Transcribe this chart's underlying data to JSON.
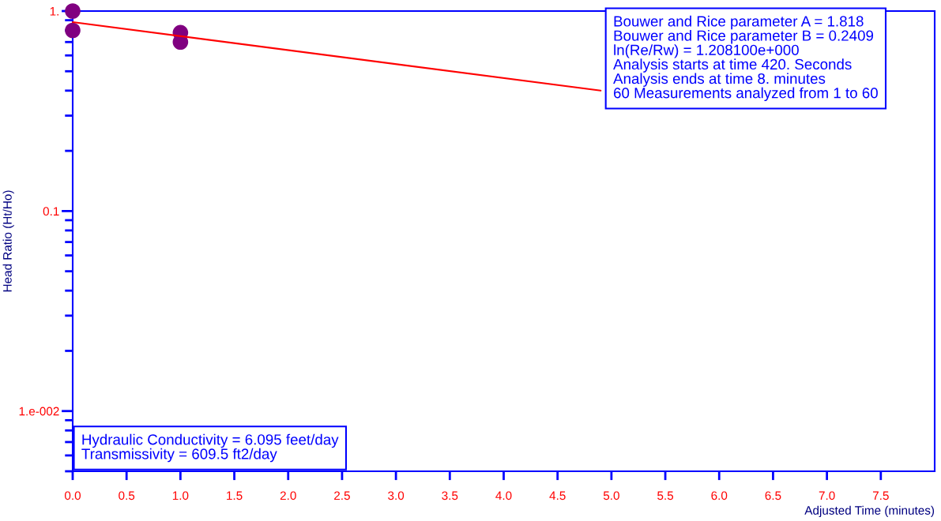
{
  "chart_data": {
    "type": "scatter",
    "xlabel": "Adjusted Time (minutes)",
    "ylabel": "Head Ratio (Ht/Ho)",
    "log": "y",
    "xlim": [
      0,
      8
    ],
    "ylim": [
      0.005,
      1
    ],
    "xticks": [
      {
        "value": 0,
        "label": "0.0"
      },
      {
        "value": 0.5,
        "label": "0.5"
      },
      {
        "value": 1,
        "label": "1.0"
      },
      {
        "value": 1.5,
        "label": "1.5"
      },
      {
        "value": 2,
        "label": "2.0"
      },
      {
        "value": 2.5,
        "label": "2.5"
      },
      {
        "value": 3,
        "label": "3.0"
      },
      {
        "value": 3.5,
        "label": "3.5"
      },
      {
        "value": 4,
        "label": "4.0"
      },
      {
        "value": 4.5,
        "label": "4.5"
      },
      {
        "value": 5,
        "label": "5.0"
      },
      {
        "value": 5.5,
        "label": "5.5"
      },
      {
        "value": 6,
        "label": "6.0"
      },
      {
        "value": 6.5,
        "label": "6.5"
      },
      {
        "value": 7,
        "label": "7.0"
      },
      {
        "value": 7.5,
        "label": "7.5"
      }
    ],
    "yticks": [
      {
        "value": 1,
        "label": "1."
      },
      {
        "value": 0.9,
        "label": null
      },
      {
        "value": 0.8,
        "label": null
      },
      {
        "value": 0.7,
        "label": null
      },
      {
        "value": 0.6,
        "label": null
      },
      {
        "value": 0.5,
        "label": null
      },
      {
        "value": 0.4,
        "label": null
      },
      {
        "value": 0.3,
        "label": null
      },
      {
        "value": 0.2,
        "label": null
      },
      {
        "value": 0.1,
        "label": "0.1"
      },
      {
        "value": 0.09,
        "label": null
      },
      {
        "value": 0.08,
        "label": null
      },
      {
        "value": 0.07,
        "label": null
      },
      {
        "value": 0.06,
        "label": null
      },
      {
        "value": 0.05,
        "label": null
      },
      {
        "value": 0.04,
        "label": null
      },
      {
        "value": 0.03,
        "label": null
      },
      {
        "value": 0.02,
        "label": null
      },
      {
        "value": 0.01,
        "label": "1.e-002"
      },
      {
        "value": 0.009,
        "label": null
      },
      {
        "value": 0.008,
        "label": null
      },
      {
        "value": 0.007,
        "label": null
      },
      {
        "value": 0.006,
        "label": null
      },
      {
        "value": 0.005,
        "label": null
      }
    ],
    "legend": false,
    "grid": false,
    "series": [
      {
        "color": "#800080",
        "marker": "circle",
        "x": [
          0,
          0,
          1,
          1
        ],
        "values": [
          1.0,
          0.8,
          0.78,
          0.7
        ]
      },
      {
        "type": "line",
        "marker": "none",
        "color": "#ff0000",
        "x": [
          0,
          4.9
        ],
        "values": [
          0.88,
          0.4
        ]
      }
    ],
    "annotations": [
      "Bouwer and Rice parameter A = 1.818\nBouwer and Rice parameter B = 0.2409\nln(Re/Rw) = 1.208100e+000\nAnalysis starts at time 420. Seconds\nAnalysis ends at time 8. minutes\n60 Measurements analyzed from 1 to 60",
      "Hydraulic Conductivity = 6.095 feet/day\nTransmissivity = 609.5 ft2/day"
    ]
  }
}
